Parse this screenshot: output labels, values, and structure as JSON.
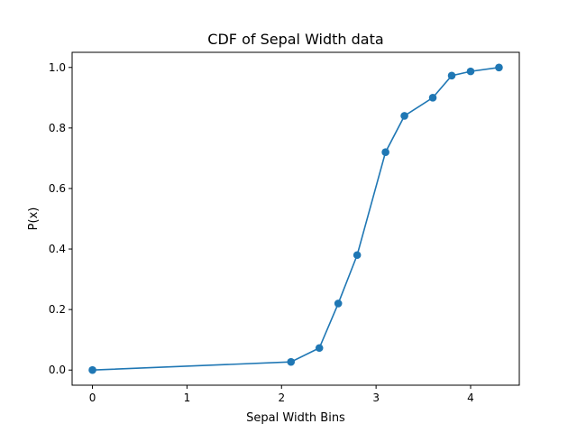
{
  "chart_data": {
    "type": "line",
    "title": "CDF of Sepal Width data",
    "xlabel": "Sepal Width Bins",
    "ylabel": "P(x)",
    "xlim": [
      -0.215,
      4.515
    ],
    "ylim": [
      -0.05,
      1.05
    ],
    "xticks": [
      0,
      1,
      2,
      3,
      4
    ],
    "xtick_labels": [
      "0",
      "1",
      "2",
      "3",
      "4"
    ],
    "yticks": [
      0.0,
      0.2,
      0.4,
      0.6,
      0.8,
      1.0
    ],
    "ytick_labels": [
      "0.0",
      "0.2",
      "0.4",
      "0.6",
      "0.8",
      "1.0"
    ],
    "grid": false,
    "series": [
      {
        "color": "#1f77b4",
        "marker": "circle",
        "x": [
          0,
          2.1,
          2.4,
          2.6,
          2.8,
          3.1,
          3.3,
          3.6,
          3.8,
          4.0,
          4.3
        ],
        "y": [
          0.0,
          0.027,
          0.073,
          0.22,
          0.38,
          0.72,
          0.84,
          0.9,
          0.973,
          0.987,
          1.0
        ]
      }
    ]
  }
}
